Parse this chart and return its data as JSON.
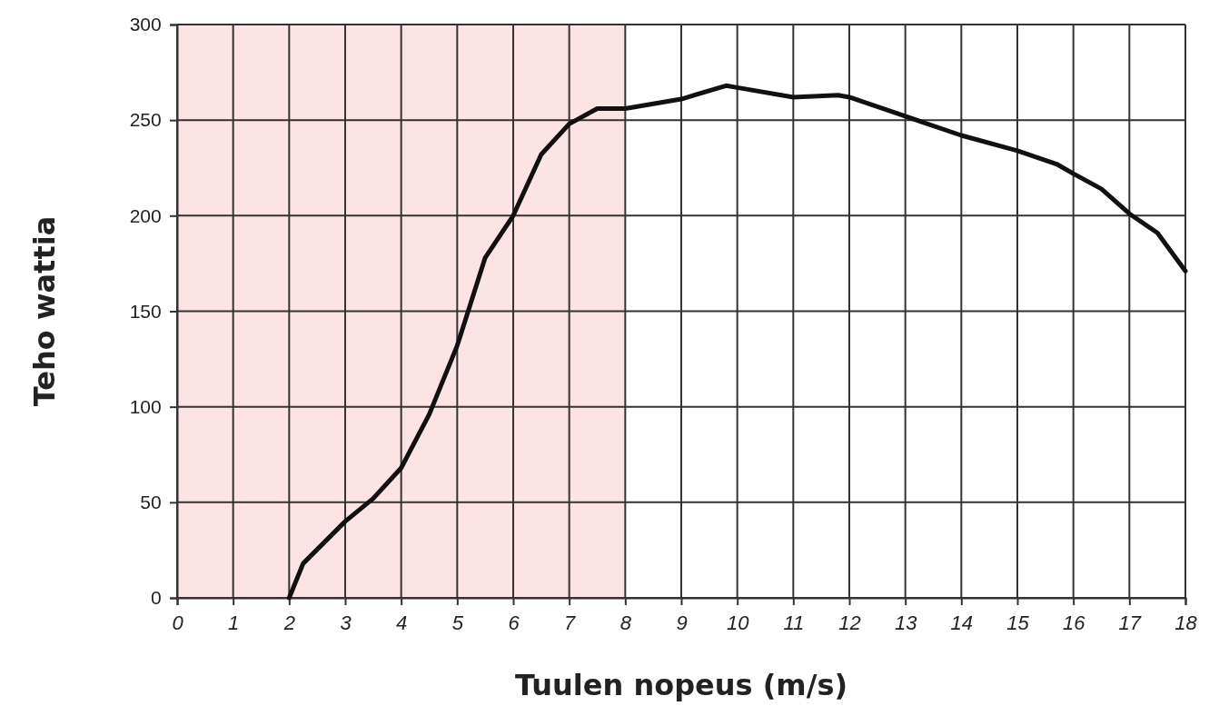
{
  "chart_data": {
    "type": "line",
    "xlabel": "Tuulen nopeus (m/s)",
    "ylabel": "Teho wattia",
    "xlim": [
      0,
      18
    ],
    "ylim": [
      0,
      300
    ],
    "xticks": [
      0,
      1,
      2,
      3,
      4,
      5,
      6,
      7,
      8,
      9,
      10,
      11,
      12,
      13,
      14,
      15,
      16,
      17,
      18
    ],
    "yticks": [
      0,
      50,
      100,
      150,
      200,
      250,
      300
    ],
    "grid": true,
    "marker": "none",
    "line_style": "solid",
    "bands": [
      {
        "axis": "x",
        "from": 0,
        "to": 8,
        "color": "#fde4e4"
      }
    ],
    "series": [
      {
        "color": "#111111",
        "x": [
          2,
          2.25,
          3,
          3.5,
          4,
          4.5,
          5,
          5.5,
          6,
          6.5,
          7,
          7.5,
          8,
          9,
          9.8,
          10,
          11,
          11.8,
          12,
          13,
          14,
          15,
          15.7,
          16,
          16.5,
          17,
          17.5,
          18
        ],
        "values": [
          0,
          18,
          40,
          52,
          68,
          96,
          132,
          178,
          200,
          232,
          248,
          256,
          256,
          261,
          268,
          267,
          262,
          263,
          262,
          252,
          242,
          234,
          227,
          222,
          214,
          201,
          191,
          171
        ]
      }
    ]
  }
}
